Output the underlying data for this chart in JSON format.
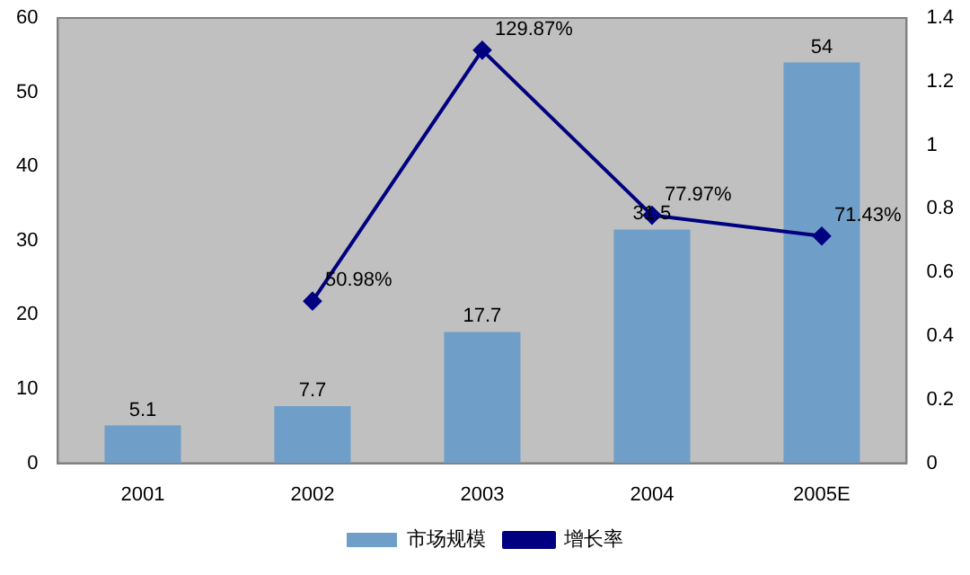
{
  "chart_data": {
    "type": "bar",
    "categories": [
      "2001",
      "2002",
      "2003",
      "2004",
      "2005E"
    ],
    "series": [
      {
        "name": "市场规模",
        "color": "#6f9fc8",
        "values": [
          5.1,
          7.7,
          17.7,
          31.5,
          54
        ],
        "value_labels": [
          "5.1",
          "7.7",
          "17.7",
          "31.5",
          "54"
        ]
      },
      {
        "name": "增长率",
        "type": "line",
        "axis": "y2",
        "color": "#000080",
        "values": [
          null,
          0.5098,
          1.2987,
          0.7797,
          0.7143
        ],
        "value_labels": [
          null,
          "50.98%",
          "129.87%",
          "77.97%",
          "71.43%"
        ]
      }
    ],
    "ylim": [
      0,
      60
    ],
    "yticks": [
      0,
      10,
      20,
      30,
      40,
      50,
      60
    ],
    "y2lim": [
      0,
      1.4
    ],
    "y2ticks": [
      0,
      0.2,
      0.4,
      0.6,
      0.8,
      1,
      1.2,
      1.4
    ],
    "grid": false,
    "legend": "bottom",
    "marker": "diamond",
    "line_style": "solid"
  }
}
